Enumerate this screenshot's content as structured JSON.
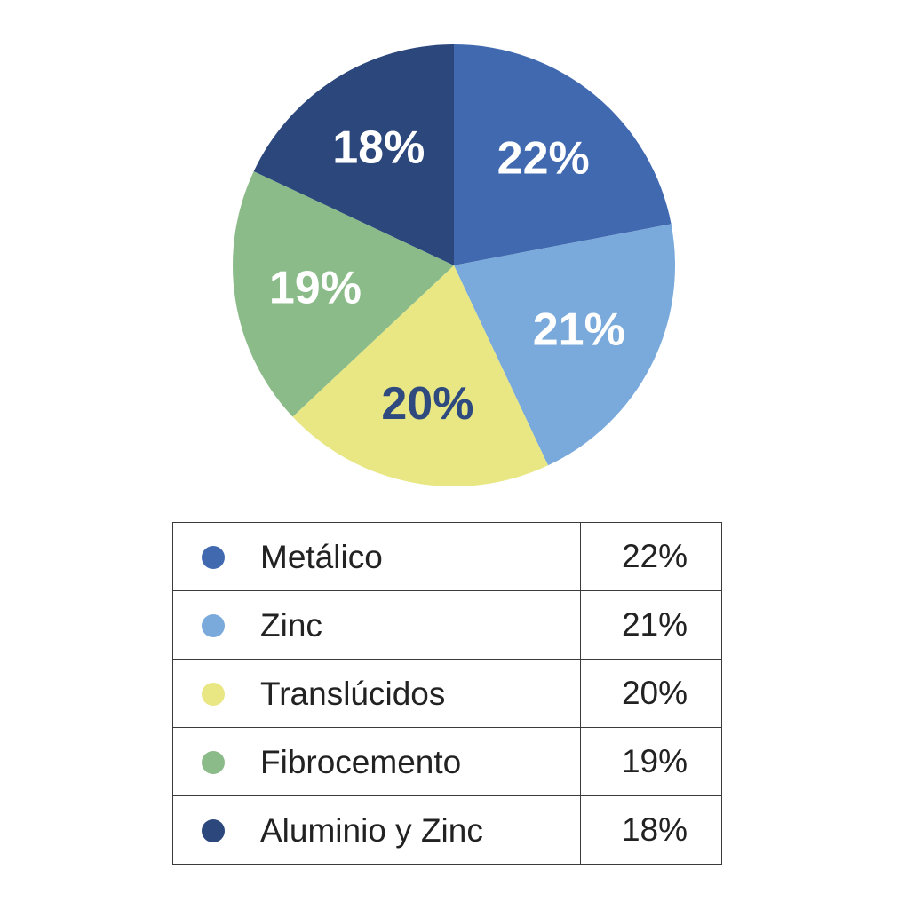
{
  "chart_data": {
    "type": "pie",
    "title": "",
    "slices": [
      {
        "name": "Metálico",
        "value": 22,
        "label": "22%",
        "color": "#4169b0",
        "label_color": "#ffffff"
      },
      {
        "name": "Zinc",
        "value": 21,
        "label": "21%",
        "color": "#7aaadb",
        "label_color": "#ffffff"
      },
      {
        "name": "Translúcidos",
        "value": 20,
        "label": "20%",
        "color": "#e8e784",
        "label_color": "#2e4a7e"
      },
      {
        "name": "Fibrocemento",
        "value": 19,
        "label": "19%",
        "color": "#8cbb8a",
        "label_color": "#ffffff"
      },
      {
        "name": "Aluminio y Zinc",
        "value": 18,
        "label": "18%",
        "color": "#2b477c",
        "label_color": "#ffffff"
      }
    ]
  },
  "legend": {
    "rows": [
      {
        "name": "Metálico",
        "value": "22%"
      },
      {
        "name": "Zinc",
        "value": "21%"
      },
      {
        "name": "Translúcidos",
        "value": "20%"
      },
      {
        "name": "Fibrocemento",
        "value": "19%"
      },
      {
        "name": "Aluminio y Zinc",
        "value": "18%"
      }
    ]
  }
}
